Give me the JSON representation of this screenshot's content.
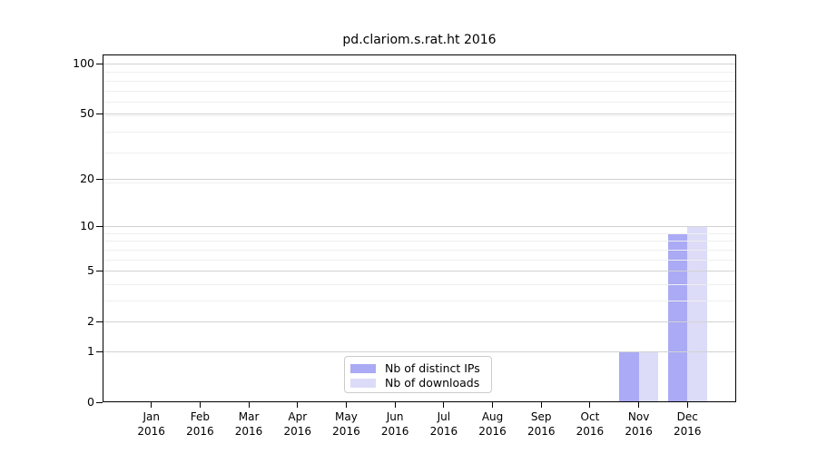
{
  "chart_data": {
    "type": "bar",
    "title": "pd.clariom.s.rat.ht 2016",
    "categories": [
      "Jan 2016",
      "Feb 2016",
      "Mar 2016",
      "Apr 2016",
      "May 2016",
      "Jun 2016",
      "Jul 2016",
      "Aug 2016",
      "Sep 2016",
      "Oct 2016",
      "Nov 2016",
      "Dec 2016"
    ],
    "series": [
      {
        "name": "Nb of distinct IPs",
        "color": "#aaaaf5",
        "values": [
          0,
          0,
          0,
          0,
          0,
          0,
          0,
          0,
          0,
          0,
          1,
          9
        ]
      },
      {
        "name": "Nb of downloads",
        "color": "#dcdcf8",
        "values": [
          0,
          0,
          0,
          0,
          0,
          0,
          0,
          0,
          0,
          0,
          1,
          10
        ]
      }
    ],
    "y_ticks": [
      0,
      1,
      2,
      5,
      10,
      20,
      50,
      100
    ],
    "y_minor_ticks": [
      3,
      4,
      6,
      7,
      8,
      9,
      19,
      29,
      39,
      49,
      59,
      69,
      79,
      89
    ],
    "scale": "log1p",
    "ylim": [
      0,
      100
    ],
    "xlabel": "",
    "ylabel": "",
    "grid": "major+minor",
    "legend_position": "bottom-center"
  }
}
